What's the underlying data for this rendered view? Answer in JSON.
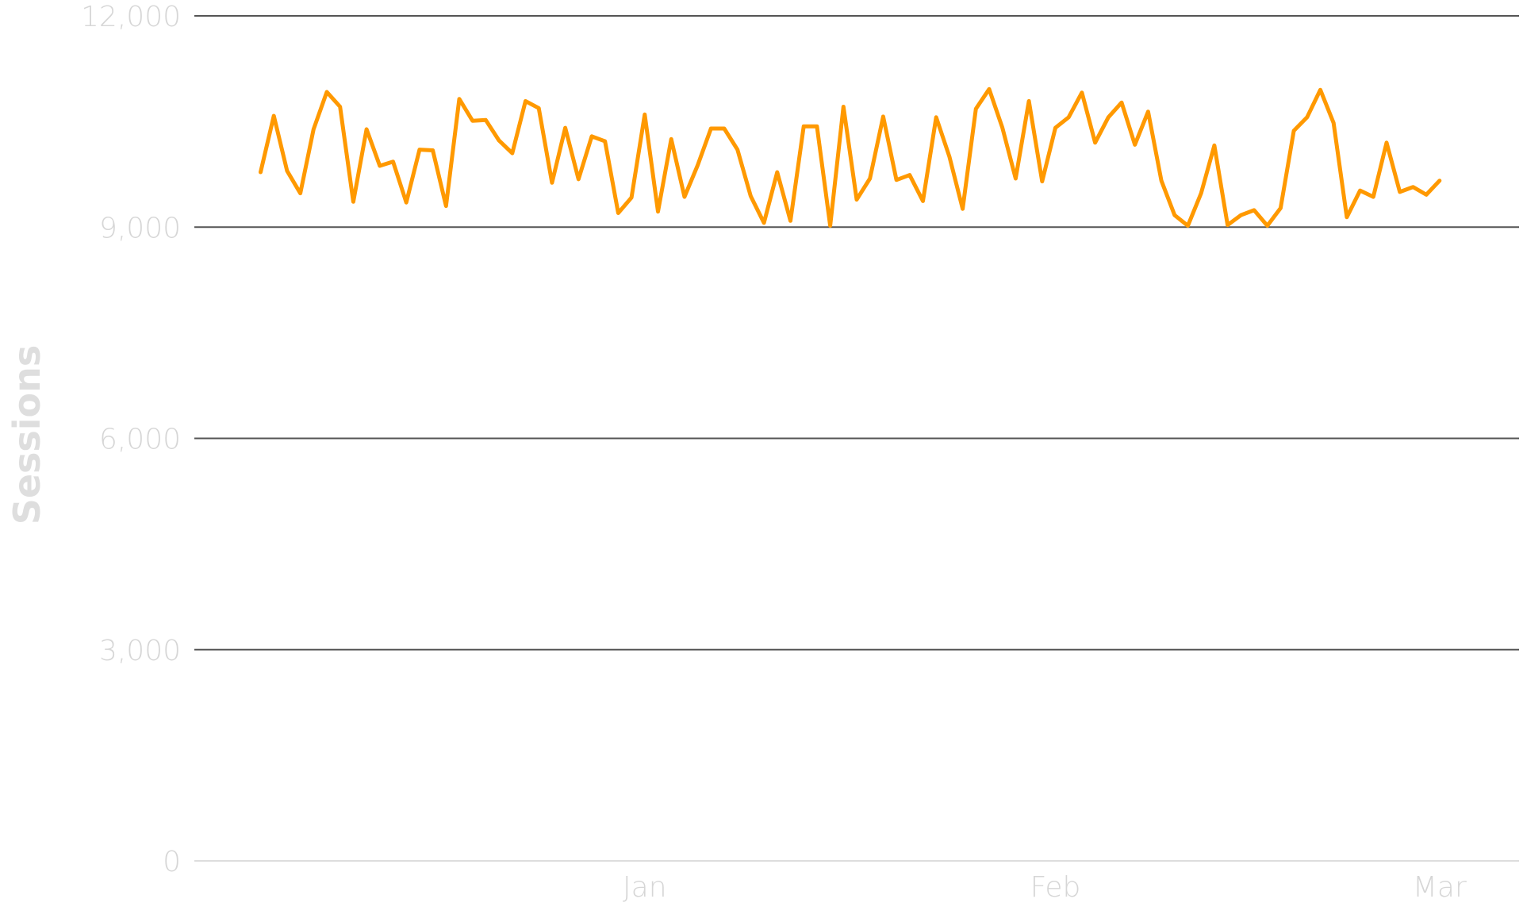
{
  "chart_data": {
    "type": "line",
    "ylabel": "Sessions",
    "xlabel": "",
    "ylim": [
      0,
      12000
    ],
    "y_ticks": [
      0,
      3000,
      6000,
      9000,
      12000
    ],
    "y_tick_labels": [
      "0",
      "3,000",
      "6,000",
      "9,000",
      "12,000"
    ],
    "x_tick_labels": [
      {
        "label": "Jan",
        "date": "2020-01-01"
      },
      {
        "label": "Feb",
        "date": "2020-02-01"
      },
      {
        "label": "Mar",
        "date": "2020-03-01"
      }
    ],
    "x_range": [
      "2019-11-28",
      "2020-03-07"
    ],
    "grid": true,
    "series": [
      {
        "color": "#ff9900",
        "start_date": "2019-12-03",
        "x_step": "1 day",
        "values": [
          9780,
          10580,
          9800,
          9480,
          10390,
          10920,
          10710,
          9360,
          10390,
          9870,
          9930,
          9350,
          10100,
          10090,
          9300,
          10820,
          10510,
          10520,
          10230,
          10050,
          10790,
          10690,
          9630,
          10410,
          9680,
          10290,
          10220,
          9200,
          9420,
          10600,
          9220,
          10250,
          9430,
          9880,
          10400,
          10400,
          10100,
          9440,
          9060,
          9780,
          9090,
          10430,
          10430,
          9020,
          10710,
          9390,
          9690,
          10570,
          9670,
          9740,
          9370,
          10560,
          10000,
          9260,
          10680,
          10960,
          10410,
          9690,
          10790,
          9650,
          10410,
          10560,
          10910,
          10200,
          10560,
          10770,
          10170,
          10640,
          9660,
          9170,
          9020,
          9480,
          10160,
          9030,
          9170,
          9240,
          9020,
          9270,
          10370,
          10560,
          10950,
          10480,
          9140,
          9520,
          9430,
          10200,
          9500,
          9570,
          9460,
          9660
        ]
      }
    ]
  }
}
